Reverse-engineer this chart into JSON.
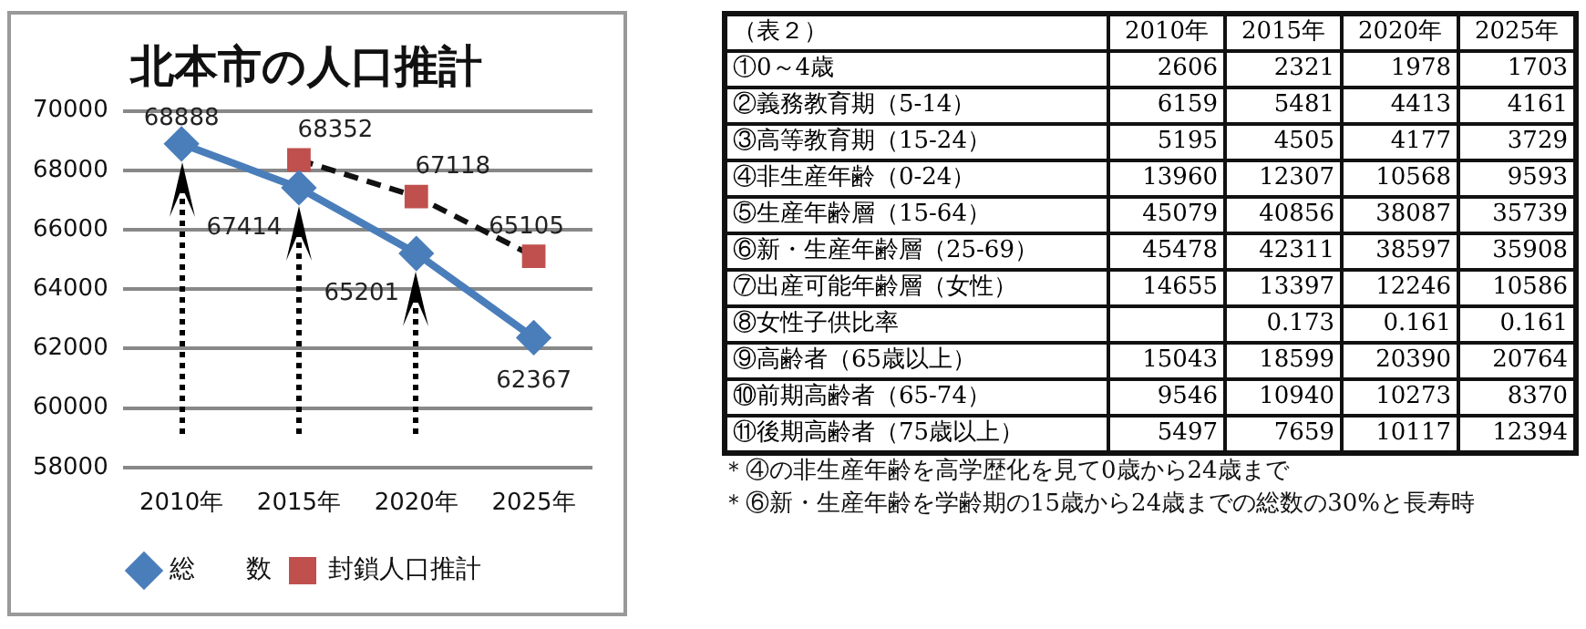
{
  "chart_data": [
    {
      "type": "line",
      "title": "北本市の人口推計",
      "categories": [
        "2010年",
        "2015年",
        "2020年",
        "2025年"
      ],
      "series": [
        {
          "name": "総　　数",
          "color": "#4a7ebb",
          "values": [
            68888,
            67414,
            65201,
            62367
          ],
          "marker": "diamond",
          "line_style": "solid"
        },
        {
          "name": "封鎖人口推計",
          "color": "#c0504d",
          "values": [
            null,
            68352,
            67118,
            65105
          ],
          "marker": "square",
          "line_style": "dashed"
        }
      ],
      "ylim": [
        58000,
        70000
      ],
      "yticks": [
        58000,
        60000,
        62000,
        64000,
        66000,
        68000,
        70000
      ],
      "grid": "y",
      "legend": "bottom",
      "data_labels": true
    },
    {
      "type": "heatmap",
      "title": "（表２）",
      "categories": [
        "2010年",
        "2015年",
        "2020年",
        "2025年"
      ],
      "y_categories": [
        "①0～4歳",
        "②義務教育期（5-14）",
        "③高等教育期（15-24）",
        "④非生産年齢（0-24）",
        "⑤生産年齢層（15-64）",
        "⑥新・生産年齢層（25-69）",
        "⑦出産可能年齢層（女性）",
        "⑧女性子供比率",
        "⑨高齢者（65歳以上）",
        "⑩前期高齢者（65-74）",
        "⑪後期高齢者（75歳以上）"
      ],
      "cells": [
        [
          2606,
          2321,
          1978,
          1703
        ],
        [
          6159,
          5481,
          4413,
          4161
        ],
        [
          5195,
          4505,
          4177,
          3729
        ],
        [
          13960,
          12307,
          10568,
          9593
        ],
        [
          45079,
          40856,
          38087,
          35739
        ],
        [
          45478,
          42311,
          38597,
          35908
        ],
        [
          14655,
          13397,
          12246,
          10586
        ],
        [
          null,
          0.173,
          0.161,
          0.161
        ],
        [
          15043,
          18599,
          20390,
          20764
        ],
        [
          9546,
          10940,
          10273,
          8370
        ],
        [
          5497,
          7659,
          10117,
          12394
        ]
      ],
      "data_labels": true,
      "annotations": [
        "＊④の非生産年齢を高学歴化を見て0歳から24歳まで",
        "＊⑥新・生産年齢を学齢期の15歳から24歳までの総数の30%と長寿時"
      ]
    }
  ]
}
